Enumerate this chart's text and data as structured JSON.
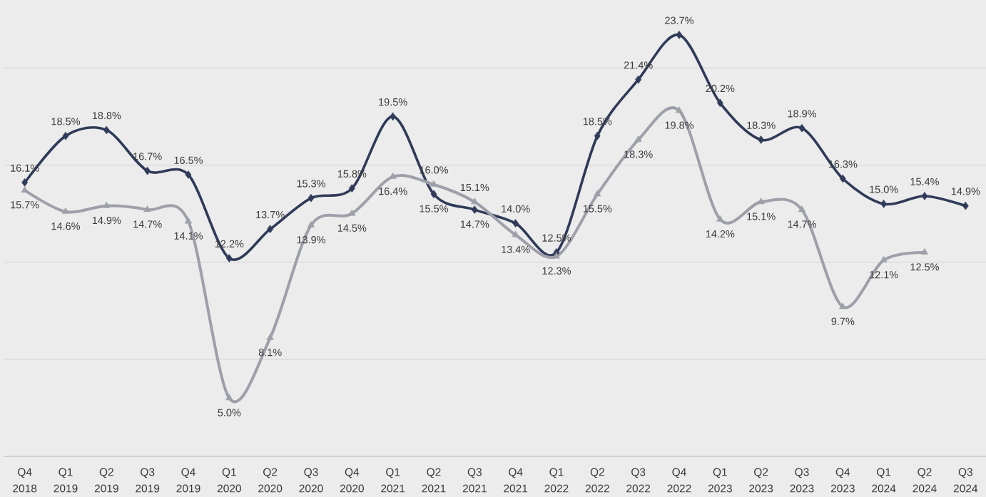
{
  "chart_data": {
    "type": "line",
    "categories": [
      "Q4 2018",
      "Q1 2019",
      "Q2 2019",
      "Q3 2019",
      "Q4 2019",
      "Q1 2020",
      "Q2 2020",
      "Q3 2020",
      "Q4 2020",
      "Q1 2021",
      "Q2 2021",
      "Q3 2021",
      "Q4 2021",
      "Q1 2022",
      "Q2 2022",
      "Q3 2022",
      "Q4 2022",
      "Q1 2023",
      "Q2 2023",
      "Q3 2023",
      "Q4 2023",
      "Q1 2024",
      "Q2 2024",
      "Q3 2024"
    ],
    "series": [
      {
        "color": "#2f3b58",
        "marker": "diamond",
        "values": [
          16.1,
          18.5,
          18.8,
          16.7,
          16.5,
          12.2,
          13.7,
          15.3,
          15.8,
          19.5,
          15.5,
          14.7,
          14.0,
          12.5,
          18.5,
          21.4,
          23.7,
          20.2,
          18.3,
          18.9,
          16.3,
          15.0,
          15.4,
          14.9
        ],
        "value_labels": [
          "16.1%",
          "18.5%",
          "18.8%",
          "16.7%",
          "16.5%",
          "12.2%",
          "13.7%",
          "15.3%",
          "15.8%",
          "19.5%",
          "15.5%",
          "14.7%",
          "14.0%",
          "12.5%",
          "18.5%",
          "21.4%",
          "23.7%",
          "20.2%",
          "18.3%",
          "18.9%",
          "16.3%",
          "15.0%",
          "15.4%",
          "14.9%"
        ]
      },
      {
        "color": "#9d9fa9",
        "marker": "triangle",
        "values": [
          15.7,
          14.6,
          14.9,
          14.7,
          14.1,
          5.0,
          8.1,
          13.9,
          14.5,
          16.4,
          16.0,
          15.1,
          13.4,
          12.3,
          15.5,
          18.3,
          19.8,
          14.2,
          15.1,
          14.7,
          9.7,
          12.1,
          12.5,
          null
        ],
        "value_labels": [
          "15.7%",
          "14.6%",
          "14.9%",
          "14.7%",
          "14.1%",
          "5.0%",
          "8.1%",
          "13.9%",
          "14.5%",
          "16.4%",
          "16.0%",
          "15.1%",
          "13.4%",
          "12.3%",
          "15.5%",
          "18.3%",
          "19.8%",
          "14.2%",
          "15.1%",
          "14.7%",
          "9.7%",
          "12.1%",
          "12.5%",
          null
        ]
      }
    ],
    "yticks": [
      7,
      12,
      17,
      22
    ],
    "grid": "y",
    "tick_labels": "x"
  }
}
